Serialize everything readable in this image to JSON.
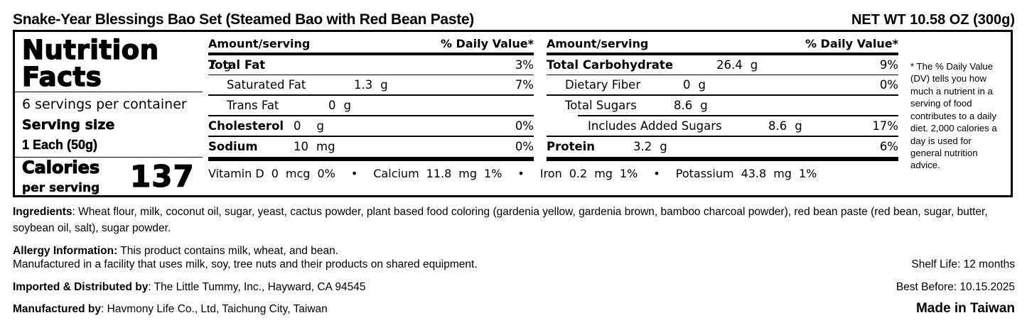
{
  "header": {
    "product_title": "Snake-Year Blessings Bao Set (Steamed Bao with Red Bean Paste)",
    "net_weight": "NET WT 10.58 OZ (300g)"
  },
  "panel": {
    "title_line1": "Nutrition",
    "title_line2": "Facts",
    "servings_per_container": "6 servings per container",
    "serving_size_label": "Serving size",
    "serving_size_value": "1 Each (50g)",
    "calories_label": "Calories",
    "calories_sub": "per serving",
    "calories_value": "137",
    "col_header_amount": "Amount/serving",
    "col_header_dv": "% Daily Value*",
    "left_rows": [
      {
        "label": "Total Fat",
        "amount": "2",
        "unit": "g",
        "dv": "3%"
      },
      {
        "label": "Saturated Fat",
        "amount": "1.3",
        "unit": "g",
        "dv": "7%"
      },
      {
        "label": "Trans Fat",
        "amount": "0",
        "unit": "g",
        "dv": ""
      },
      {
        "label": "Cholesterol",
        "amount": "0",
        "unit": "g",
        "dv": "0%"
      },
      {
        "label": "Sodium",
        "amount": "10",
        "unit": "mg",
        "dv": "0%"
      }
    ],
    "right_rows": [
      {
        "label": "Total Carbohydrate",
        "amount": "26.4",
        "unit": "g",
        "dv": "9%"
      },
      {
        "label": "Dietary Fiber",
        "amount": "0",
        "unit": "g",
        "dv": "0%"
      },
      {
        "label": "Total Sugars",
        "amount": "8.6",
        "unit": "g",
        "dv": ""
      },
      {
        "label": "Includes Added Sugars",
        "amount": "8.6",
        "unit": "g",
        "dv": "17%"
      },
      {
        "label": "Protein",
        "amount": "3.2",
        "unit": "g",
        "dv": "6%"
      }
    ],
    "micronutrients": [
      {
        "name": "Vitamin D",
        "amount": "0",
        "unit": "mcg",
        "dv": "0%"
      },
      {
        "name": "Calcium",
        "amount": "11.8",
        "unit": "mg",
        "dv": "1%"
      },
      {
        "name": "Iron",
        "amount": "0.2",
        "unit": "mg",
        "dv": "1%"
      },
      {
        "name": "Potassium",
        "amount": "43.8",
        "unit": "mg",
        "dv": "1%"
      }
    ],
    "bullet": "•",
    "footnote": "* The % Daily Value (DV) tells you how much a nutrient in a serving of food contributes to a daily diet. 2,000 calories a day is used for general nutrition advice."
  },
  "info": {
    "ingredients_label": "Ingredients",
    "ingredients_text": ": Wheat flour, milk, coconut oil, sugar, yeast, cactus powder, plant based food coloring (gardenia yellow, gardenia brown, bamboo charcoal powder), red bean paste (red bean, sugar, butter, soybean oil, salt), sugar powder.",
    "allergy_label": "Allergy Information:",
    "allergy_text": " This product contains milk, wheat, and bean.",
    "facility_text": "Manufactured in a facility that uses milk, soy, tree nuts and their products on shared equipment.",
    "shelf_life": "Shelf Life: 12 months",
    "imported_label": "Imported & Distributed by",
    "imported_text": ": The Little Tummy, Inc., Hayward, CA 94545",
    "best_before": "Best Before: 10.15.2025",
    "manufactured_label": "Manufactured by",
    "manufactured_text": ": Havmony Life Co., Ltd, Taichung City, Taiwan",
    "made_in": "Made in Taiwan"
  },
  "colors": {
    "text": "#000000",
    "background": "#ffffff",
    "rule": "#000000"
  }
}
